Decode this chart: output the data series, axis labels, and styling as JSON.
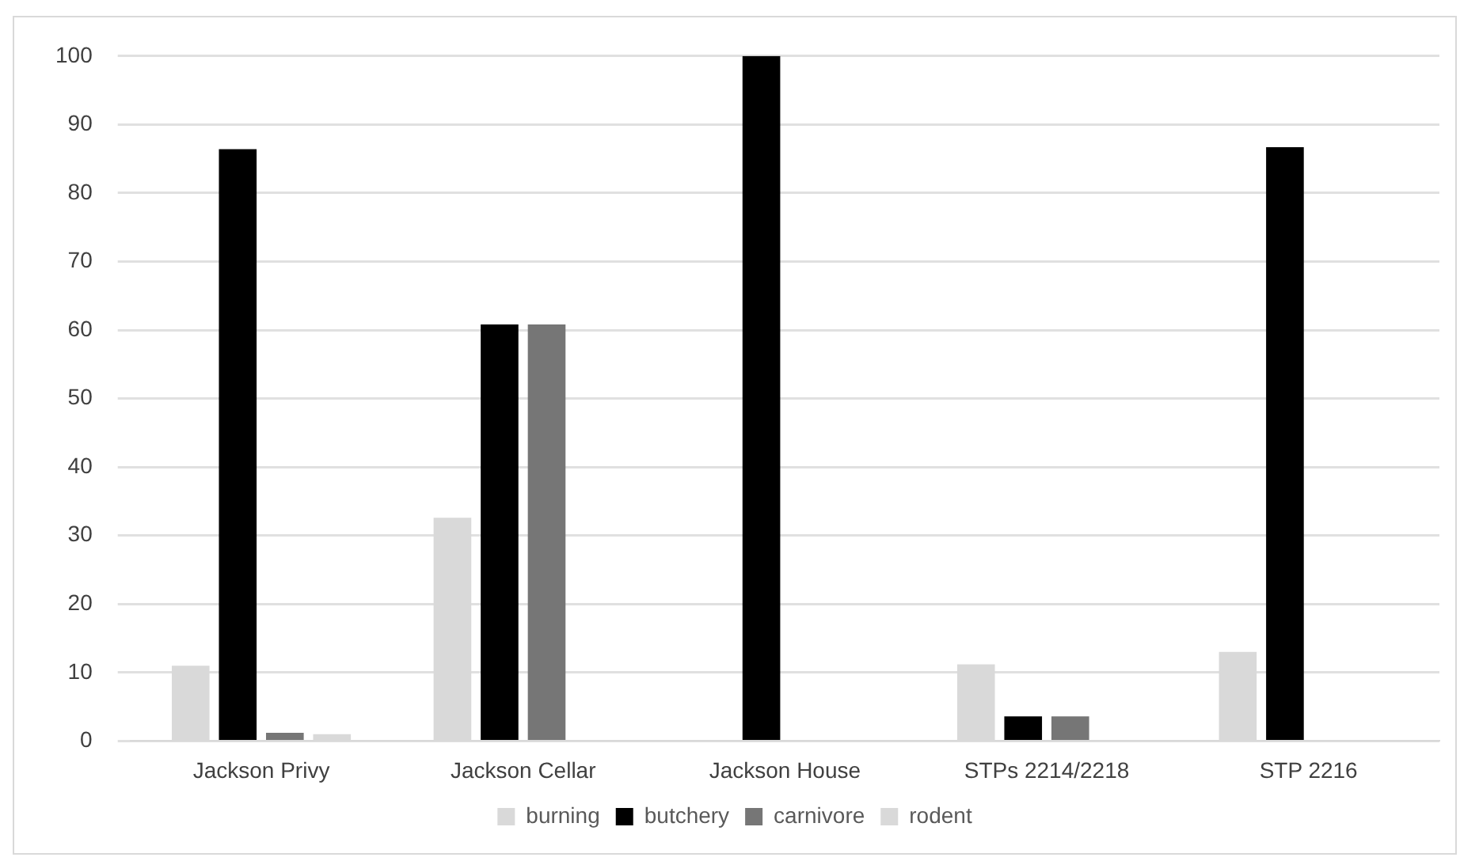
{
  "chart_data": {
    "type": "bar",
    "categories": [
      "Jackson Privy",
      "Jackson Cellar",
      "Jackson House",
      "STPs 2214/2218",
      "STP 2216"
    ],
    "series": [
      {
        "name": "burning",
        "color": "#d9d9d9",
        "values": [
          11,
          32.6,
          null,
          11.2,
          13
        ]
      },
      {
        "name": "butchery",
        "color": "#000000",
        "values": [
          86.4,
          60.8,
          100,
          3.6,
          86.7
        ]
      },
      {
        "name": "carnivore",
        "color": "#767676",
        "values": [
          1.2,
          60.8,
          null,
          3.6,
          null
        ]
      },
      {
        "name": "rodent",
        "color": "#d9d9d9",
        "values": [
          1,
          null,
          null,
          null,
          null
        ]
      }
    ],
    "ylim": [
      0,
      100
    ],
    "yticks": [
      0,
      10,
      20,
      30,
      40,
      50,
      60,
      70,
      80,
      90,
      100
    ],
    "grid": "y",
    "legend": "bottom"
  }
}
